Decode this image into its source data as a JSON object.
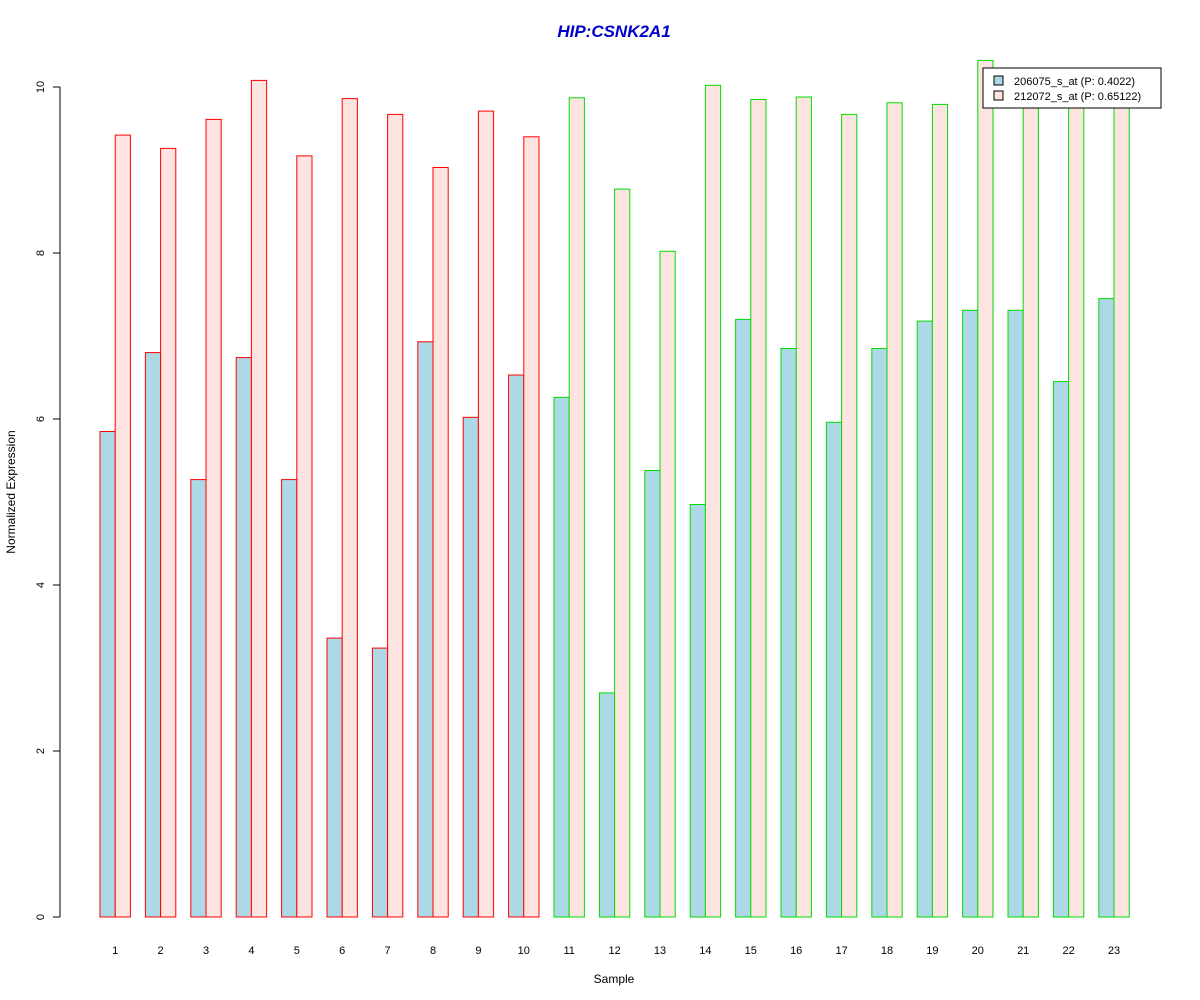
{
  "chart_data": {
    "type": "bar",
    "title": "HIP:CSNK2A1",
    "xlabel": "Sample",
    "ylabel": "Normalized Expression",
    "categories": [
      "1",
      "2",
      "3",
      "4",
      "5",
      "6",
      "7",
      "8",
      "9",
      "10",
      "11",
      "12",
      "13",
      "14",
      "15",
      "16",
      "17",
      "18",
      "19",
      "20",
      "21",
      "22",
      "23"
    ],
    "yticks": [
      "0",
      "2",
      "4",
      "6",
      "8",
      "10"
    ],
    "ylim": [
      0,
      10.08
    ],
    "grid": false,
    "legend_position": "top-right",
    "series": [
      {
        "name": "206075_s_at (P: 0.4022)",
        "fill": "#add8e6",
        "values": [
          5.85,
          6.8,
          5.27,
          6.74,
          5.27,
          3.36,
          3.24,
          6.93,
          6.02,
          6.53,
          6.26,
          2.7,
          5.38,
          4.97,
          7.2,
          6.85,
          5.96,
          6.85,
          7.18,
          7.31,
          7.31,
          6.45,
          7.45
        ]
      },
      {
        "name": "212072_s_at (P: 0.65122)",
        "fill": "#fde4e1",
        "values": [
          9.42,
          9.26,
          9.61,
          10.08,
          9.17,
          9.86,
          9.67,
          9.03,
          9.71,
          9.4,
          9.87,
          8.77,
          8.02,
          10.02,
          9.85,
          9.88,
          9.67,
          9.81,
          9.79,
          10.32,
          9.81,
          9.8,
          9.88
        ]
      }
    ],
    "group_outline_colors": [
      "#ff0000",
      "#ff0000",
      "#ff0000",
      "#ff0000",
      "#ff0000",
      "#ff0000",
      "#ff0000",
      "#ff0000",
      "#ff0000",
      "#ff0000",
      "#00dd00",
      "#00dd00",
      "#00dd00",
      "#00dd00",
      "#00dd00",
      "#00dd00",
      "#00dd00",
      "#00dd00",
      "#00dd00",
      "#00dd00",
      "#00dd00",
      "#00dd00",
      "#00dd00"
    ],
    "title_color": "#0000cc"
  }
}
